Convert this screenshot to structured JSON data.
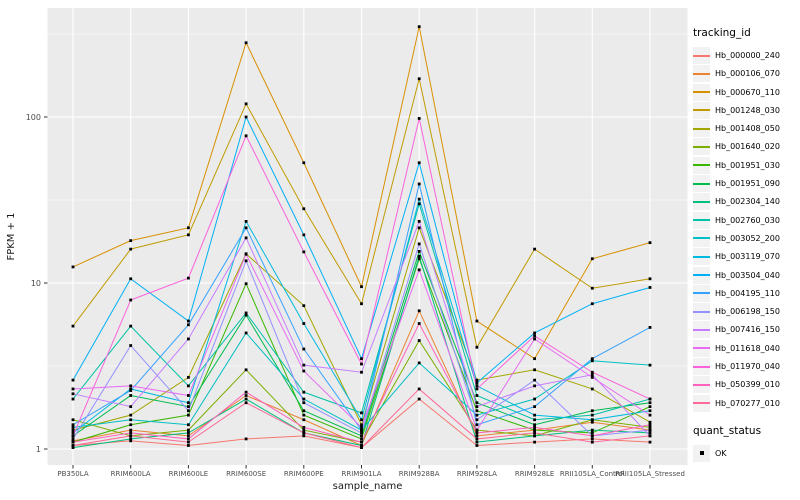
{
  "figure": {
    "panel_background": "#EBEBEB",
    "grid_color": "#FFFFFF",
    "axis_text_color": "#4D4D4D",
    "title_text_color": "#000000",
    "point_color": "#000000",
    "legend_key_fill": "#F2F2F2"
  },
  "legend": {
    "tracking_title": "tracking_id",
    "quant_title": "quant_status",
    "quant_entries": [
      {
        "label": "OK",
        "marker": "black-square"
      }
    ]
  },
  "chart_data": {
    "type": "line",
    "title": "",
    "xlabel": "sample_name",
    "ylabel": "FPKM + 1",
    "yscale": "log10",
    "ylim": [
      1,
      450
    ],
    "yticks": [
      1,
      10,
      100
    ],
    "ytick_labels": [
      "1",
      "10",
      "100"
    ],
    "yminor": [
      3.1623,
      31.623,
      316.23
    ],
    "grid": true,
    "legend_position": "right",
    "marker": "square",
    "quant_status": "OK",
    "categories": [
      "PB350LA",
      "RRIM600LA",
      "RRIM600LE",
      "RRIM600SE",
      "RRIM600PE",
      "RRIM901LA",
      "RRIM928BA",
      "RRIM928LA",
      "RRIM928LE",
      "RRII105LA_Control",
      "RRII105LA_Stressed"
    ],
    "series": [
      {
        "name": "Hb_000000_240",
        "color": "#F8766D",
        "values": [
          1.05,
          1.12,
          1.05,
          1.15,
          1.2,
          1.02,
          2.0,
          1.05,
          1.1,
          1.15,
          1.1
        ]
      },
      {
        "name": "Hb_000106_070",
        "color": "#EA8331",
        "values": [
          1.12,
          1.3,
          1.2,
          2.1,
          1.5,
          1.05,
          6.8,
          1.2,
          1.3,
          1.45,
          1.3
        ]
      },
      {
        "name": "Hb_000670_110",
        "color": "#D89000",
        "values": [
          12.5,
          18.0,
          21.5,
          280,
          53,
          9.5,
          350,
          5.9,
          3.5,
          14.0,
          17.5
        ]
      },
      {
        "name": "Hb_001248_030",
        "color": "#C09B00",
        "values": [
          5.5,
          16.0,
          19.5,
          120,
          28,
          7.5,
          170,
          4.1,
          16.0,
          9.3,
          10.6
        ]
      },
      {
        "name": "Hb_001408_050",
        "color": "#A3A500",
        "values": [
          1.3,
          1.6,
          2.7,
          15.0,
          7.3,
          1.4,
          21.5,
          2.6,
          3.0,
          2.3,
          1.45
        ]
      },
      {
        "name": "Hb_001640_020",
        "color": "#7CAE00",
        "values": [
          1.5,
          1.2,
          1.3,
          3.0,
          1.3,
          1.1,
          4.5,
          1.3,
          1.2,
          1.5,
          1.35
        ]
      },
      {
        "name": "Hb_001951_030",
        "color": "#39B600",
        "values": [
          1.1,
          1.4,
          1.6,
          9.9,
          1.6,
          1.15,
          14.0,
          1.7,
          1.3,
          1.25,
          1.8
        ]
      },
      {
        "name": "Hb_001951_090",
        "color": "#00BB4E",
        "values": [
          1.2,
          2.1,
          1.8,
          6.4,
          1.7,
          1.2,
          15.5,
          1.9,
          1.4,
          1.7,
          1.9
        ]
      },
      {
        "name": "Hb_002304_140",
        "color": "#00BF7D",
        "values": [
          1.02,
          1.15,
          1.25,
          2.0,
          1.25,
          1.05,
          14.5,
          1.1,
          1.2,
          1.3,
          1.25
        ]
      },
      {
        "name": "Hb_002760_030",
        "color": "#00C1A7",
        "values": [
          2.0,
          5.5,
          2.4,
          6.6,
          2.2,
          1.65,
          30.0,
          2.1,
          1.5,
          1.6,
          2.0
        ]
      },
      {
        "name": "Hb_003052_200",
        "color": "#00BFC4",
        "values": [
          1.35,
          1.5,
          1.4,
          5.0,
          2.0,
          1.3,
          3.3,
          1.6,
          2.0,
          3.4,
          3.2
        ]
      },
      {
        "name": "Hb_003119_070",
        "color": "#00BAE0",
        "values": [
          1.25,
          2.3,
          1.9,
          23.5,
          5.7,
          1.5,
          32.0,
          2.4,
          1.6,
          1.5,
          1.7
        ]
      },
      {
        "name": "Hb_003504_040",
        "color": "#00B0F6",
        "values": [
          2.6,
          10.6,
          5.9,
          100,
          19.5,
          3.5,
          53.0,
          2.5,
          5.0,
          7.5,
          9.4
        ]
      },
      {
        "name": "Hb_004195_110",
        "color": "#35A2FF",
        "values": [
          1.4,
          2.25,
          5.6,
          21.5,
          4.0,
          1.3,
          39.5,
          1.4,
          1.8,
          3.5,
          5.4
        ]
      },
      {
        "name": "Hb_006198_150",
        "color": "#9590FF",
        "values": [
          1.15,
          4.2,
          1.7,
          13.6,
          1.9,
          1.25,
          17.2,
          1.5,
          2.6,
          1.2,
          1.3
        ]
      },
      {
        "name": "Hb_007416_150",
        "color": "#C77CFF",
        "values": [
          2.15,
          1.8,
          4.6,
          18.7,
          3.2,
          2.9,
          23.5,
          1.8,
          2.4,
          2.8,
          1.2
        ]
      },
      {
        "name": "Hb_011618_040",
        "color": "#E76BF3",
        "values": [
          2.3,
          2.4,
          2.1,
          14.9,
          2.95,
          1.35,
          12.0,
          1.3,
          4.6,
          2.7,
          1.6
        ]
      },
      {
        "name": "Hb_011970_040",
        "color": "#FA62DB",
        "values": [
          1.2,
          7.9,
          10.7,
          77.0,
          15.4,
          3.25,
          98.0,
          2.3,
          4.8,
          2.9,
          2.0
        ]
      },
      {
        "name": "Hb_050399_010",
        "color": "#FF62BC",
        "values": [
          1.1,
          1.25,
          1.15,
          2.2,
          1.35,
          1.1,
          5.7,
          1.25,
          1.35,
          1.2,
          1.4
        ]
      },
      {
        "name": "Hb_070277_010",
        "color": "#FF6A98",
        "values": [
          1.05,
          1.2,
          1.1,
          1.9,
          1.25,
          1.02,
          2.3,
          1.15,
          1.25,
          1.1,
          1.2
        ]
      }
    ]
  }
}
